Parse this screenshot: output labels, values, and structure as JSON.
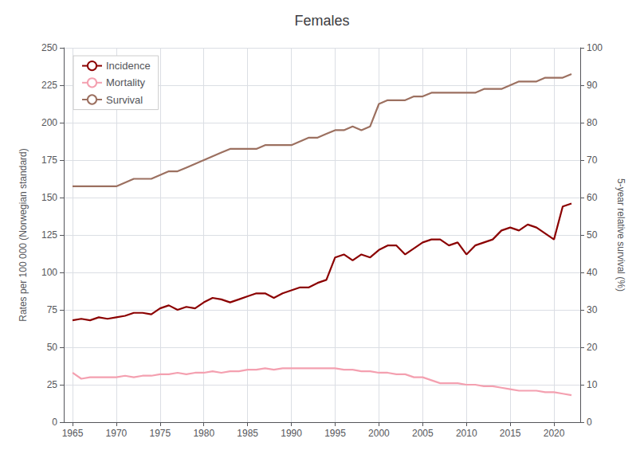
{
  "chart_data": {
    "type": "line",
    "title": "Females",
    "ylabel": "Rates per 100 000 (Norwegian standard)",
    "y2label": "5-year relative survival (%)",
    "x": [
      1965,
      1966,
      1967,
      1968,
      1969,
      1970,
      1971,
      1972,
      1973,
      1974,
      1975,
      1976,
      1977,
      1978,
      1979,
      1980,
      1981,
      1982,
      1983,
      1984,
      1985,
      1986,
      1987,
      1988,
      1989,
      1990,
      1991,
      1992,
      1993,
      1994,
      1995,
      1996,
      1997,
      1998,
      1999,
      2000,
      2001,
      2002,
      2003,
      2004,
      2005,
      2006,
      2007,
      2008,
      2009,
      2010,
      2011,
      2012,
      2013,
      2014,
      2015,
      2016,
      2017,
      2018,
      2019,
      2020,
      2021,
      2022
    ],
    "xlim": [
      1964,
      2023
    ],
    "xticks": [
      1965,
      1970,
      1975,
      1980,
      1985,
      1990,
      1995,
      2000,
      2005,
      2010,
      2015,
      2020
    ],
    "ylim": [
      0,
      250
    ],
    "yticks": [
      0,
      25,
      50,
      75,
      100,
      125,
      150,
      175,
      200,
      225,
      250
    ],
    "y2lim": [
      0,
      100
    ],
    "y2ticks": [
      0,
      10,
      20,
      30,
      40,
      50,
      60,
      70,
      80,
      90,
      100
    ],
    "grid": true,
    "legend": "upper left",
    "series": [
      {
        "name": "Incidence",
        "color": "#8B0000",
        "values": [
          68,
          69,
          68,
          70,
          69,
          70,
          71,
          73,
          73,
          72,
          76,
          78,
          75,
          77,
          76,
          80,
          83,
          82,
          80,
          82,
          84,
          86,
          86,
          83,
          86,
          88,
          90,
          90,
          93,
          95,
          110,
          112,
          108,
          112,
          110,
          115,
          118,
          118,
          112,
          116,
          120,
          122,
          122,
          118,
          120,
          112,
          118,
          120,
          122,
          128,
          130,
          128,
          132,
          130,
          126,
          122,
          144,
          146
        ]
      },
      {
        "name": "Mortality",
        "color": "#F4A0B0",
        "values": [
          33,
          29,
          30,
          30,
          30,
          30,
          31,
          30,
          31,
          31,
          32,
          32,
          33,
          32,
          33,
          33,
          34,
          33,
          34,
          34,
          35,
          35,
          36,
          35,
          36,
          36,
          36,
          36,
          36,
          36,
          36,
          35,
          35,
          34,
          34,
          33,
          33,
          32,
          32,
          30,
          30,
          28,
          26,
          26,
          26,
          25,
          25,
          24,
          24,
          23,
          22,
          21,
          21,
          21,
          20,
          20,
          19,
          18
        ]
      },
      {
        "name": "Survival",
        "color": "#9C7060",
        "axis": "y2",
        "values": [
          63,
          63,
          63,
          63,
          63,
          63,
          64,
          65,
          65,
          65,
          66,
          67,
          67,
          68,
          69,
          70,
          71,
          72,
          73,
          73,
          73,
          73,
          74,
          74,
          74,
          74,
          75,
          76,
          76,
          77,
          78,
          78,
          79,
          78,
          79,
          85,
          86,
          86,
          86,
          87,
          87,
          88,
          88,
          88,
          88,
          88,
          88,
          89,
          89,
          89,
          90,
          91,
          91,
          91,
          92,
          92,
          92,
          93
        ]
      }
    ]
  }
}
